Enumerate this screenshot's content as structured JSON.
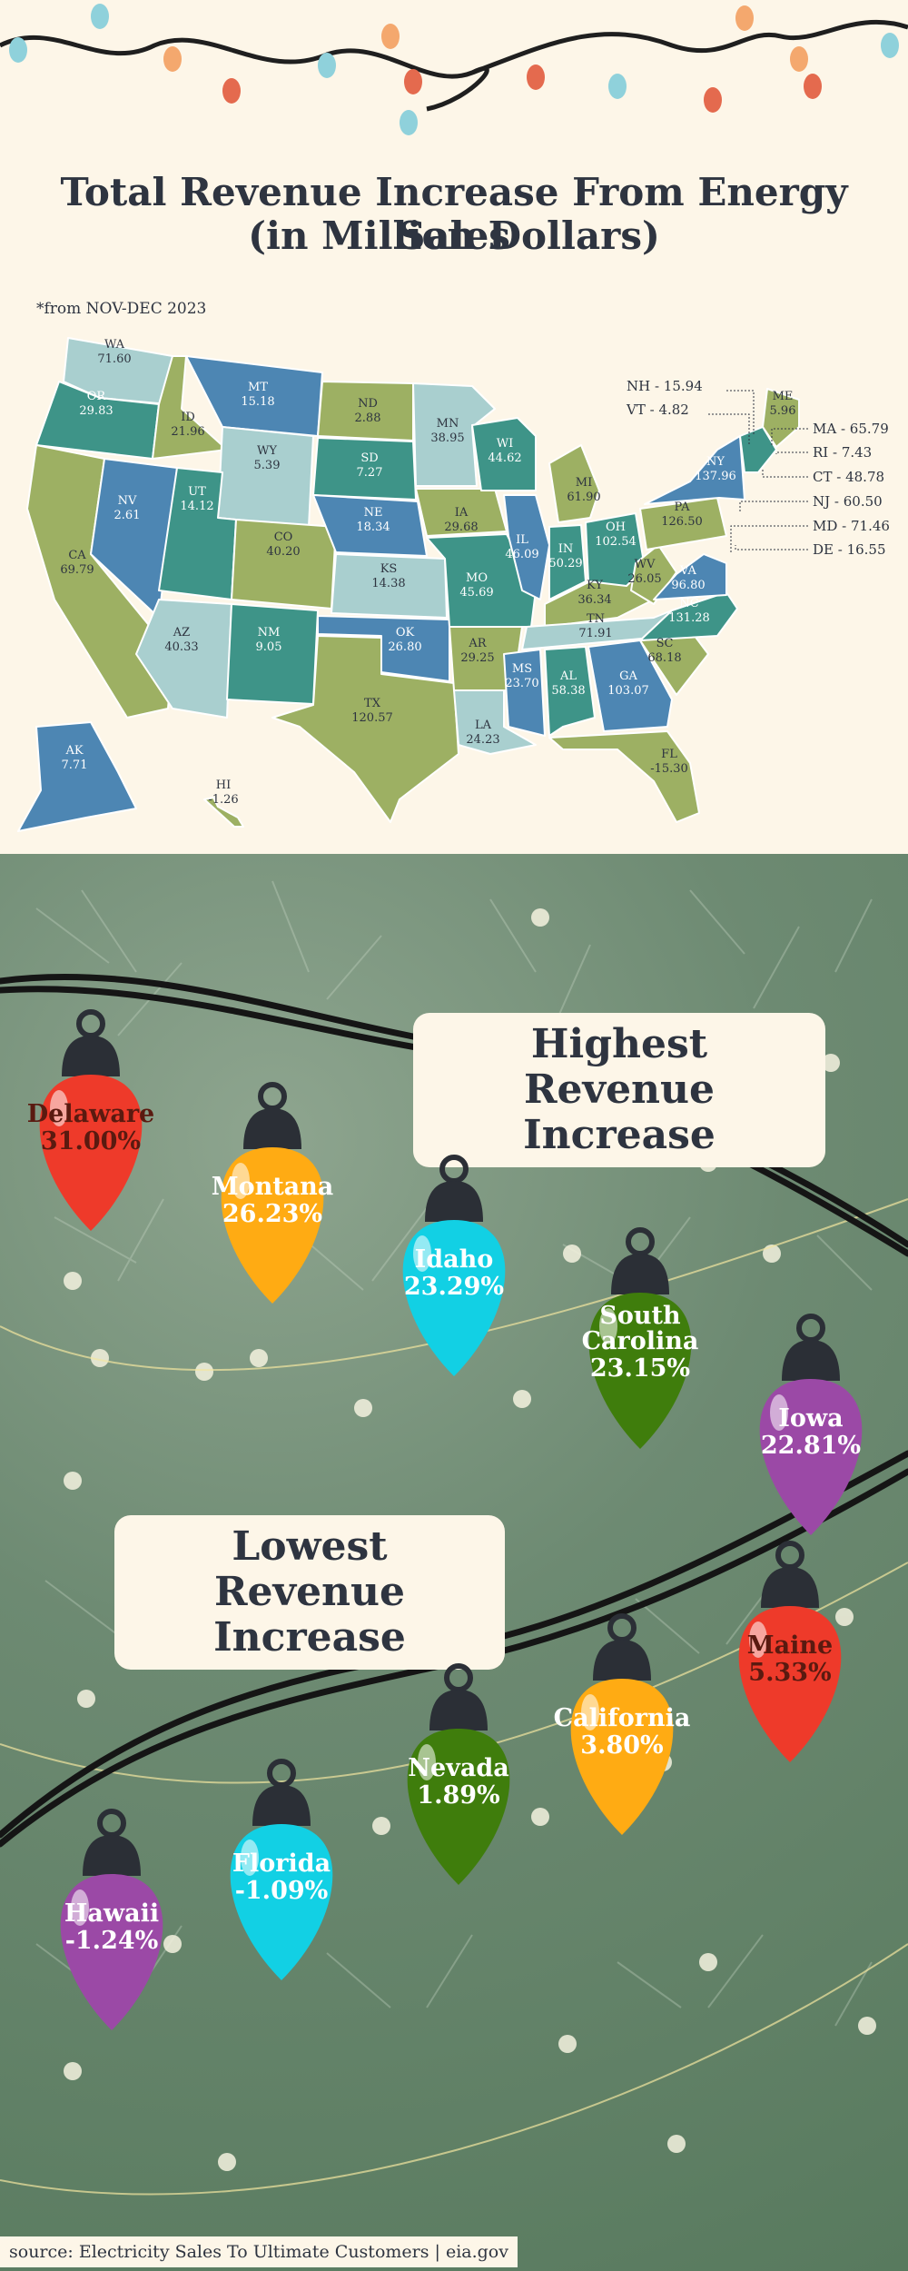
{
  "title_line1": "Total Revenue Increase From Energy Sales",
  "title_line2": "(in Million Dollars)",
  "note": "*from NOV-DEC 2023",
  "chart_data": [
    {
      "type": "choropleth",
      "title": "Total Revenue Increase From Energy Sales (in Million Dollars)",
      "unit": "Million Dollars",
      "states": [
        {
          "code": "WA",
          "value": "71.60"
        },
        {
          "code": "OR",
          "value": "29.83"
        },
        {
          "code": "CA",
          "value": "69.79"
        },
        {
          "code": "ID",
          "value": "21.96"
        },
        {
          "code": "NV",
          "value": "2.61"
        },
        {
          "code": "MT",
          "value": "15.18"
        },
        {
          "code": "WY",
          "value": "5.39"
        },
        {
          "code": "UT",
          "value": "14.12"
        },
        {
          "code": "AZ",
          "value": "40.33"
        },
        {
          "code": "CO",
          "value": "40.20"
        },
        {
          "code": "NM",
          "value": "9.05"
        },
        {
          "code": "ND",
          "value": "2.88"
        },
        {
          "code": "SD",
          "value": "7.27"
        },
        {
          "code": "NE",
          "value": "18.34"
        },
        {
          "code": "KS",
          "value": "14.38"
        },
        {
          "code": "OK",
          "value": "26.80"
        },
        {
          "code": "TX",
          "value": "120.57"
        },
        {
          "code": "MN",
          "value": "38.95"
        },
        {
          "code": "IA",
          "value": "29.68"
        },
        {
          "code": "MO",
          "value": "45.69"
        },
        {
          "code": "AR",
          "value": "29.25"
        },
        {
          "code": "LA",
          "value": "24.23"
        },
        {
          "code": "WI",
          "value": "44.62"
        },
        {
          "code": "IL",
          "value": "46.09"
        },
        {
          "code": "MS",
          "value": "23.70"
        },
        {
          "code": "MI",
          "value": "61.90"
        },
        {
          "code": "IN",
          "value": "50.29"
        },
        {
          "code": "KY",
          "value": "36.34"
        },
        {
          "code": "TN",
          "value": "71.91"
        },
        {
          "code": "AL",
          "value": "58.38"
        },
        {
          "code": "OH",
          "value": "102.54"
        },
        {
          "code": "WV",
          "value": "26.05"
        },
        {
          "code": "GA",
          "value": "103.07"
        },
        {
          "code": "FL",
          "value": "-15.30"
        },
        {
          "code": "SC",
          "value": "68.18"
        },
        {
          "code": "NC",
          "value": "131.28"
        },
        {
          "code": "VA",
          "value": "96.80"
        },
        {
          "code": "PA",
          "value": "126.50"
        },
        {
          "code": "NY",
          "value": "137.96"
        },
        {
          "code": "ME",
          "value": "5.96"
        },
        {
          "code": "AK",
          "value": "7.71"
        },
        {
          "code": "HI",
          "value": "-1.26"
        }
      ],
      "callouts": [
        {
          "label": "NH - 15.94"
        },
        {
          "label": "VT - 4.82"
        },
        {
          "label": "MA - 65.79"
        },
        {
          "label": "RI -  7.43"
        },
        {
          "label": "CT -  48.78"
        },
        {
          "label": "NJ -  60.50"
        },
        {
          "label": "MD -  71.46"
        },
        {
          "label": "DE -  16.55"
        }
      ]
    },
    {
      "type": "bar",
      "title": "Highest Revenue Increase",
      "categories": [
        "Delaware",
        "Montana",
        "Idaho",
        "South Carolina",
        "Iowa"
      ],
      "labels": [
        "31.00%",
        "26.23%",
        "23.29%",
        "23.15%",
        "22.81%"
      ],
      "values": [
        31.0,
        26.23,
        23.29,
        23.15,
        22.81
      ]
    },
    {
      "type": "bar",
      "title": "Lowest Revenue Increase",
      "categories": [
        "Maine",
        "California",
        "Nevada",
        "Florida",
        "Hawaii"
      ],
      "labels": [
        "5.33%",
        "3.80%",
        "1.89%",
        "-1.09%",
        "-1.24%"
      ],
      "values": [
        5.33,
        3.8,
        1.89,
        -1.09,
        -1.24
      ]
    }
  ],
  "highest": {
    "line1": "Highest Revenue",
    "line2": "Increase"
  },
  "lowest": {
    "line1": "Lowest Revenue",
    "line2": "Increase"
  },
  "source": "source: Electricity Sales To Ultimate Customers | eia.gov",
  "colors": {
    "blue": "#4d86b3",
    "teal": "#3e9488",
    "olive": "#9db063",
    "pale": "#a9cfcf",
    "red": "#ee3a2a",
    "orange": "#ffab13",
    "cyan": "#12d0e4",
    "green": "#3f7d0c",
    "purple": "#9b49a6"
  }
}
